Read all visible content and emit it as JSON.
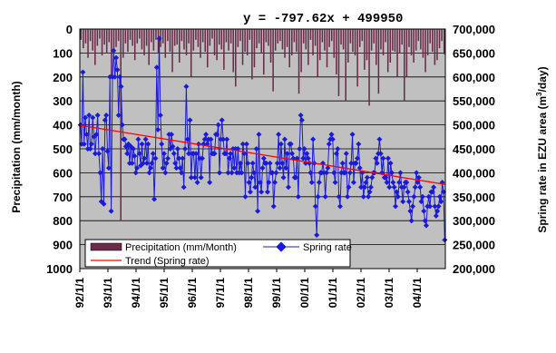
{
  "chart_data": {
    "type": "bar",
    "title": "",
    "equation": "y = -797.62x + 499950",
    "ylabel_left": "Precipitation (mm/month)",
    "ylabel_right_parts": [
      "Spring rate in EZU area (m",
      "3",
      "/day)"
    ],
    "ylim_left": [
      0,
      1000
    ],
    "ylim_left_inverted": true,
    "ylim_right": [
      200000,
      700000
    ],
    "yticks_left": [
      "0",
      "100",
      "200",
      "300",
      "400",
      "500",
      "600",
      "700",
      "800",
      "900",
      "1000"
    ],
    "yticks_right": [
      "200,000",
      "250,000",
      "300,000",
      "350,000",
      "400,000",
      "450,000",
      "500,000",
      "550,000",
      "600,000",
      "650,000",
      "700,000"
    ],
    "x_tick_labels": [
      "92/1/1",
      "93/1/1",
      "94/1/1",
      "95/1/1",
      "96/1/1",
      "97/1/1",
      "98/1/1",
      "99/1/1",
      "00/1/1",
      "01/1/1",
      "02/1/1",
      "03/1/1",
      "04/1/1"
    ],
    "month_count": 156,
    "grid": true,
    "legend_position": "bottom-left",
    "legend": {
      "precipitation": "Precipitation (mm/Month)",
      "spring": "Spring rate",
      "trend": "Trend (Spring rate)"
    },
    "colors": {
      "bars": "#6b2c4a",
      "spring": "#1a1adb",
      "trend": "#ff0000",
      "plot_bg": "#c0c0c0"
    },
    "series": [
      {
        "name": "Precipitation (mm/Month)",
        "axis": "left",
        "kind": "bar",
        "values": [
          45,
          80,
          60,
          120,
          50,
          90,
          150,
          70,
          40,
          110,
          65,
          100,
          55,
          200,
          85,
          75,
          50,
          800,
          120,
          60,
          95,
          45,
          70,
          130,
          60,
          40,
          85,
          110,
          70,
          150,
          55,
          90,
          45,
          100,
          75,
          60,
          120,
          50,
          95,
          180,
          70,
          65,
          140,
          50,
          85,
          110,
          60,
          200,
          90,
          45,
          75,
          120,
          55,
          95,
          160,
          70,
          40,
          110,
          130,
          65,
          85,
          170,
          55,
          90,
          60,
          180,
          240,
          75,
          50,
          150,
          95,
          110,
          45,
          210,
          160,
          80,
          60,
          100,
          190,
          55,
          70,
          140,
          260,
          90,
          60,
          50,
          85,
          120,
          75,
          160,
          110,
          55,
          95,
          270,
          180,
          60,
          85,
          150,
          45,
          110,
          70,
          200,
          130,
          55,
          90,
          160,
          75,
          50,
          120,
          190,
          280,
          65,
          85,
          300,
          140,
          60,
          95,
          110,
          240,
          75,
          50,
          170,
          130,
          320,
          90,
          60,
          150,
          270,
          85,
          110,
          55,
          180,
          140,
          90,
          95,
          200,
          100,
          65,
          300,
          200,
          75,
          110,
          140,
          90,
          50,
          85,
          120,
          180,
          110,
          60,
          95,
          150,
          130,
          80,
          50,
          105
        ]
      },
      {
        "name": "Spring rate",
        "axis": "right",
        "kind": "line",
        "values": [
          500000,
          460000,
          610000,
          460000,
          515000,
          480000,
          450000,
          520000,
          450000,
          460000,
          515000,
          475000,
          440000,
          480000,
          520000,
          440000,
          400000,
          340000,
          450000,
          335000,
          510000,
          520000,
          445000,
          410000,
          600000,
          320000,
          600000,
          655000,
          600000,
          640000,
          615000,
          520000,
          600000,
          580000,
          500000,
          470000,
          470000,
          455000,
          440000,
          460000,
          420000,
          455000,
          420000,
          450000,
          435000,
          400000,
          410000,
          470000,
          440000,
          415000,
          460000,
          420000,
          430000,
          470000,
          420000,
          460000,
          400000,
          410000,
          420000,
          440000,
          345000,
          430000,
          620000,
          490000,
          680000,
          520000,
          460000,
          410000,
          440000,
          400000,
          420000,
          430000,
          480000,
          450000,
          480000,
          455000,
          440000,
          420000,
          410000,
          450000,
          430000,
          410000,
          400000,
          430000,
          370000,
          450000,
          580000,
          470000,
          440000,
          510000,
          390000,
          440000,
          440000,
          390000,
          440000,
          380000,
          460000,
          430000,
          390000,
          430000,
          460000,
          470000,
          480000,
          460000,
          470000,
          380000,
          470000,
          440000,
          440000,
          440000,
          480000,
          480000,
          500000,
          400000,
          470000,
          510000,
          470000,
          440000,
          440000,
          470000,
          400000,
          430000,
          440000,
          400000,
          450000,
          410000,
          450000,
          400000,
          450000,
          400000,
          420000,
          400000,
          460000,
          440000,
          350000,
          460000,
          420000,
          380000,
          360000,
          390000,
          420000,
          400000,
          370000,
          450000,
          320000,
          480000,
          380000,
          360000,
          410000,
          430000,
          420000,
          420000,
          360000,
          380000,
          420000,
          400000,
          400000,
          330000,
          380000,
          400000,
          420000,
          480000,
          410000,
          460000,
          420000,
          390000,
          470000,
          410000,
          440000,
          370000,
          460000,
          460000,
          440000,
          430000,
          390000,
          390000,
          430000,
          350000,
          450000,
          520000,
          510000,
          430000,
          450000,
          420000,
          440000,
          430000,
          420000,
          400000,
          380000,
          470000,
          420000,
          330000,
          270000,
          350000,
          380000,
          400000,
          400000,
          420000,
          400000,
          350000,
          400000,
          410000,
          460000,
          470000,
          480000,
          470000,
          400000,
          380000,
          440000,
          450000,
          350000,
          330000,
          400000,
          420000,
          400000,
          400000,
          440000,
          350000,
          370000,
          400000,
          420000,
          480000,
          380000,
          420000,
          420000,
          430000,
          460000,
          410000,
          370000,
          400000,
          350000,
          370000,
          380000,
          390000,
          350000,
          360000,
          370000,
          390000,
          400000,
          400000,
          430000,
          420000,
          440000,
          470000,
          440000,
          400000,
          430000,
          390000,
          390000,
          380000,
          430000,
          370000,
          420000,
          400000,
          380000,
          370000,
          330000,
          360000,
          350000,
          380000,
          400000,
          370000,
          340000,
          370000,
          380000,
          380000,
          360000,
          340000,
          320000,
          300000,
          330000,
          350000,
          370000,
          400000,
          380000,
          390000,
          370000,
          340000,
          350000,
          320000,
          300000,
          290000,
          330000,
          350000,
          330000,
          360000,
          360000,
          370000,
          330000,
          310000,
          320000,
          330000,
          350000,
          340000,
          380000,
          360000,
          260000
        ]
      },
      {
        "name": "Trend (Spring rate)",
        "axis": "right",
        "kind": "line",
        "start": 499150,
        "end": 375720
      }
    ]
  }
}
